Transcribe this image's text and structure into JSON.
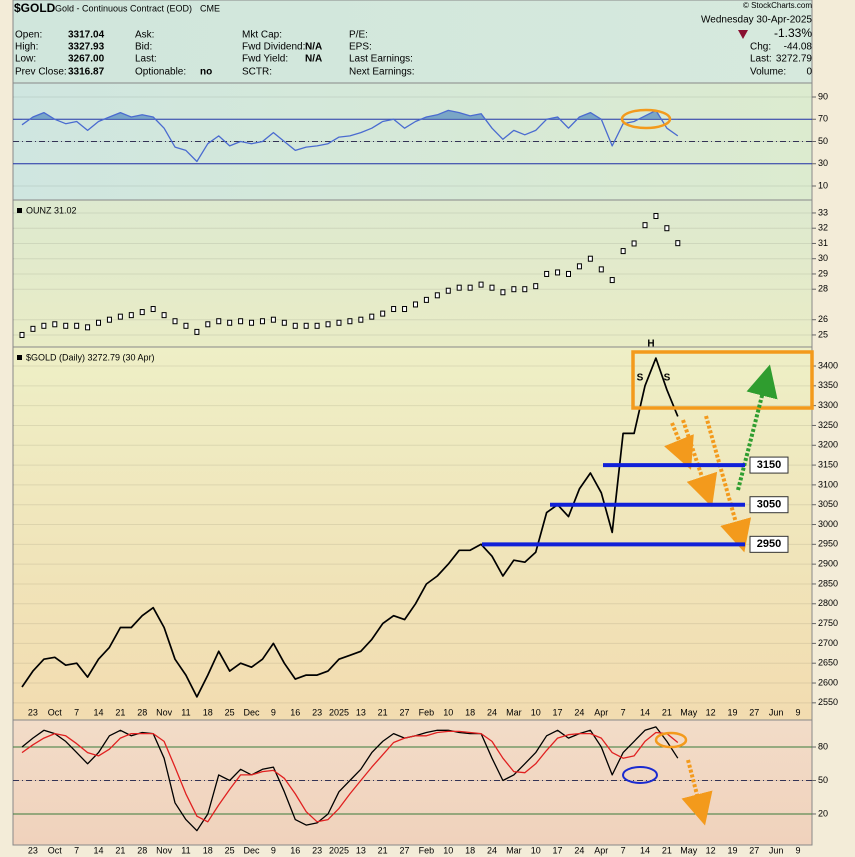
{
  "header": {
    "symbol": "$GOLD",
    "name": "Gold - Continuous Contract (EOD)",
    "exchange": "CME",
    "date": "Wednesday 30-Apr-2025",
    "source": "© StockCharts.com",
    "fields": [
      [
        {
          "label": "Open:",
          "value": "3317.04"
        },
        {
          "label": "Ask:"
        },
        {
          "label": "Mkt Cap:"
        },
        {
          "label": "P/E:"
        }
      ],
      [
        {
          "label": "High:",
          "value": "3327.93"
        },
        {
          "label": "Bid:"
        },
        {
          "label": "Fwd Dividend:",
          "value": "N/A"
        },
        {
          "label": "EPS:"
        }
      ],
      [
        {
          "label": "Low:",
          "value": "3267.00"
        },
        {
          "label": "Last:"
        },
        {
          "label": "Fwd Yield:",
          "value": "N/A"
        },
        {
          "label": "Last Earnings:"
        }
      ],
      [
        {
          "label": "Prev Close:",
          "value": "3316.87"
        },
        {
          "label": "Optionable:",
          "value": "no"
        },
        {
          "label": "SCTR:"
        },
        {
          "label": "Next Earnings:"
        }
      ]
    ],
    "change_pct": "-1.33%",
    "quote": [
      {
        "label": "Chg:",
        "value": "-44.08"
      },
      {
        "label": "Last:",
        "value": "3272.79"
      },
      {
        "label": "Volume:",
        "value": "0"
      }
    ]
  },
  "chart_data": [
    {
      "type": "line",
      "series": [
        {
          "color": "#4a6bd0",
          "values": [
            65,
            72,
            76,
            70,
            66,
            68,
            60,
            68,
            72,
            76,
            72,
            74,
            72,
            62,
            45,
            42,
            32,
            48,
            55,
            46,
            50,
            48,
            50,
            58,
            50,
            42,
            45,
            46,
            48,
            54,
            55,
            58,
            62,
            68,
            70,
            62,
            68,
            72,
            74,
            78,
            76,
            73,
            75,
            62,
            52,
            60,
            56,
            60,
            70,
            72,
            62,
            72,
            76,
            70,
            46,
            66,
            68,
            73,
            78,
            62,
            55,
            null,
            null,
            null,
            null,
            null,
            null,
            null,
            null,
            null,
            null,
            null,
            null
          ]
        }
      ],
      "ylim": [
        -2.6,
        102.6
      ],
      "yticks": [
        10,
        30,
        50,
        70,
        90
      ],
      "reference_lines": [
        70,
        50,
        30
      ],
      "fill_above": 70,
      "grid": true
    },
    {
      "type": "point",
      "legend": "OUNZ 31.02",
      "series": [
        {
          "color": "#000000",
          "values": [
            25.0,
            25.4,
            25.6,
            25.7,
            25.6,
            25.6,
            25.5,
            25.8,
            26.0,
            26.2,
            26.3,
            26.5,
            26.7,
            26.3,
            25.9,
            25.6,
            25.2,
            25.7,
            25.9,
            25.8,
            25.9,
            25.8,
            25.9,
            26.0,
            25.8,
            25.6,
            25.6,
            25.6,
            25.7,
            25.8,
            25.9,
            26.0,
            26.2,
            26.4,
            26.7,
            26.7,
            27.0,
            27.3,
            27.6,
            27.9,
            28.1,
            28.1,
            28.3,
            28.1,
            27.8,
            28.0,
            28.0,
            28.2,
            29.0,
            29.1,
            29.0,
            29.5,
            30.0,
            29.3,
            28.6,
            30.5,
            31.0,
            32.2,
            32.8,
            32.0,
            31.02,
            null,
            null,
            null,
            null,
            null,
            null,
            null,
            null,
            null,
            null,
            null,
            null
          ]
        }
      ],
      "ylim": [
        24.21,
        33.85
      ],
      "yticks": [
        25,
        26,
        28,
        29,
        30,
        31,
        32,
        33
      ],
      "grid": true
    },
    {
      "type": "line",
      "legend": "$GOLD (Daily) 3272.79 (30 Apr)",
      "categories": [
        null,
        "23",
        null,
        "Oct",
        null,
        "7",
        null,
        "14",
        null,
        "21",
        null,
        "28",
        null,
        "Nov",
        null,
        "11",
        null,
        "18",
        null,
        "25",
        null,
        "Dec",
        null,
        "9",
        null,
        "16",
        null,
        "23",
        null,
        "2025",
        null,
        "13",
        null,
        "21",
        null,
        "27",
        null,
        "Feb",
        null,
        "10",
        null,
        "18",
        null,
        "24",
        null,
        "Mar",
        null,
        "10",
        null,
        "17",
        null,
        "24",
        null,
        "Apr",
        null,
        "7",
        null,
        "14",
        null,
        "21",
        null,
        "May",
        null,
        "12",
        null,
        "19",
        null,
        "27",
        null,
        "Jun",
        null,
        "9",
        null
      ],
      "series": [
        {
          "color": "#000000",
          "values": [
            2590,
            2630,
            2660,
            2665,
            2645,
            2650,
            2615,
            2660,
            2690,
            2740,
            2740,
            2770,
            2790,
            2740,
            2660,
            2620,
            2565,
            2620,
            2680,
            2630,
            2650,
            2640,
            2660,
            2700,
            2650,
            2610,
            2620,
            2620,
            2630,
            2660,
            2670,
            2680,
            2710,
            2750,
            2770,
            2760,
            2800,
            2850,
            2870,
            2900,
            2935,
            2935,
            2950,
            2920,
            2870,
            2910,
            2905,
            2930,
            3030,
            3050,
            3020,
            3090,
            3130,
            3080,
            2980,
            3230,
            3230,
            3350,
            3420,
            3340,
            3272.79,
            null,
            null,
            null,
            null,
            null,
            null,
            null,
            null,
            null,
            null,
            null,
            null
          ]
        }
      ],
      "ylim": [
        2542,
        3448
      ],
      "yticks": [
        2550,
        2600,
        2650,
        2700,
        2750,
        2800,
        2850,
        2900,
        2950,
        3000,
        3050,
        3100,
        3150,
        3200,
        3250,
        3300,
        3350,
        3400
      ],
      "support_levels": [
        3150,
        3050,
        2950
      ],
      "annotations": [
        "H",
        "S",
        "S"
      ],
      "grid": true
    },
    {
      "type": "line",
      "series": [
        {
          "color": "#000000",
          "values": [
            80,
            88,
            95,
            92,
            85,
            75,
            65,
            75,
            90,
            95,
            90,
            93,
            92,
            70,
            30,
            15,
            5,
            20,
            55,
            50,
            60,
            55,
            60,
            62,
            40,
            15,
            10,
            12,
            20,
            40,
            50,
            60,
            75,
            85,
            92,
            88,
            90,
            93,
            95,
            95,
            93,
            92,
            92,
            70,
            50,
            55,
            65,
            75,
            90,
            95,
            88,
            92,
            95,
            80,
            55,
            75,
            85,
            95,
            98,
            85,
            70,
            null,
            null,
            null,
            null,
            null,
            null,
            null,
            null,
            null,
            null,
            null,
            null
          ]
        },
        {
          "color": "#e02020",
          "values": [
            75,
            82,
            88,
            92,
            90,
            83,
            75,
            72,
            78,
            88,
            92,
            92,
            92,
            85,
            62,
            38,
            18,
            13,
            28,
            42,
            55,
            55,
            58,
            59,
            52,
            38,
            22,
            13,
            15,
            25,
            38,
            50,
            62,
            73,
            84,
            88,
            90,
            90,
            93,
            94,
            94,
            93,
            92,
            85,
            70,
            58,
            57,
            65,
            77,
            88,
            91,
            92,
            92,
            88,
            75,
            70,
            72,
            85,
            93,
            92,
            84,
            null,
            null,
            null,
            null,
            null,
            null,
            null,
            null,
            null,
            null,
            null,
            null
          ]
        }
      ],
      "ylim": [
        -7.8,
        104.2
      ],
      "yticks": [
        20,
        50,
        80
      ],
      "reference_lines": [
        80,
        50,
        20
      ],
      "grid": true
    }
  ]
}
